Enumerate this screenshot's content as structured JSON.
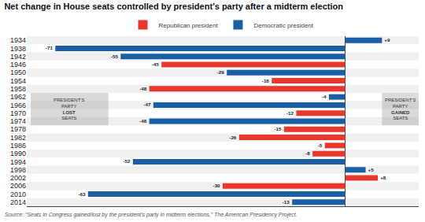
{
  "chart_data": {
    "type": "bar",
    "orientation": "horizontal",
    "title": "Net change in House seats controlled by president’s party after a midterm election",
    "categories": [
      1934,
      1938,
      1942,
      1946,
      1950,
      1954,
      1958,
      1962,
      1966,
      1970,
      1974,
      1978,
      1982,
      1986,
      1990,
      1994,
      1998,
      2002,
      2006,
      2010,
      2014
    ],
    "series": [
      {
        "name": "Republican president",
        "color": "#e8382d",
        "values": [
          null,
          null,
          null,
          -45,
          null,
          -18,
          -48,
          null,
          null,
          -12,
          null,
          -15,
          -26,
          -5,
          -8,
          null,
          null,
          8,
          -30,
          null,
          null
        ],
        "value_labels": [
          null,
          null,
          null,
          "-45",
          null,
          "-18",
          "-48",
          null,
          null,
          "-12",
          null,
          "-15",
          "-26",
          "-5",
          "-8",
          null,
          null,
          "+8",
          "-30",
          null,
          null
        ]
      },
      {
        "name": "Democratic president",
        "color": "#1a5fa5",
        "values": [
          9,
          -71,
          -55,
          null,
          -29,
          null,
          null,
          -4,
          -47,
          null,
          -48,
          null,
          null,
          null,
          null,
          -52,
          5,
          null,
          null,
          -63,
          -13
        ],
        "value_labels": [
          "+9",
          "-71",
          "-55",
          null,
          "-29",
          null,
          null,
          "-4",
          "-47",
          null,
          "-48",
          null,
          null,
          null,
          null,
          "-52",
          "+5",
          null,
          null,
          "-63",
          "-13"
        ]
      }
    ],
    "xlim": [
      -78,
      18
    ],
    "tick_labels": "y",
    "grid": false,
    "data_labels": true,
    "legend": "top",
    "annotations": [
      {
        "text": "PRESIDENT'S\nPARTY\nLOST\nSEATS"
      },
      {
        "text": "PRESIDENT'S\nPARTY\nGAINED\nSEATS"
      },
      {
        "text": "Source: “Seats in Congress gained/lost by the president’s party in midterm elections,” The American Presidency Project."
      }
    ]
  }
}
